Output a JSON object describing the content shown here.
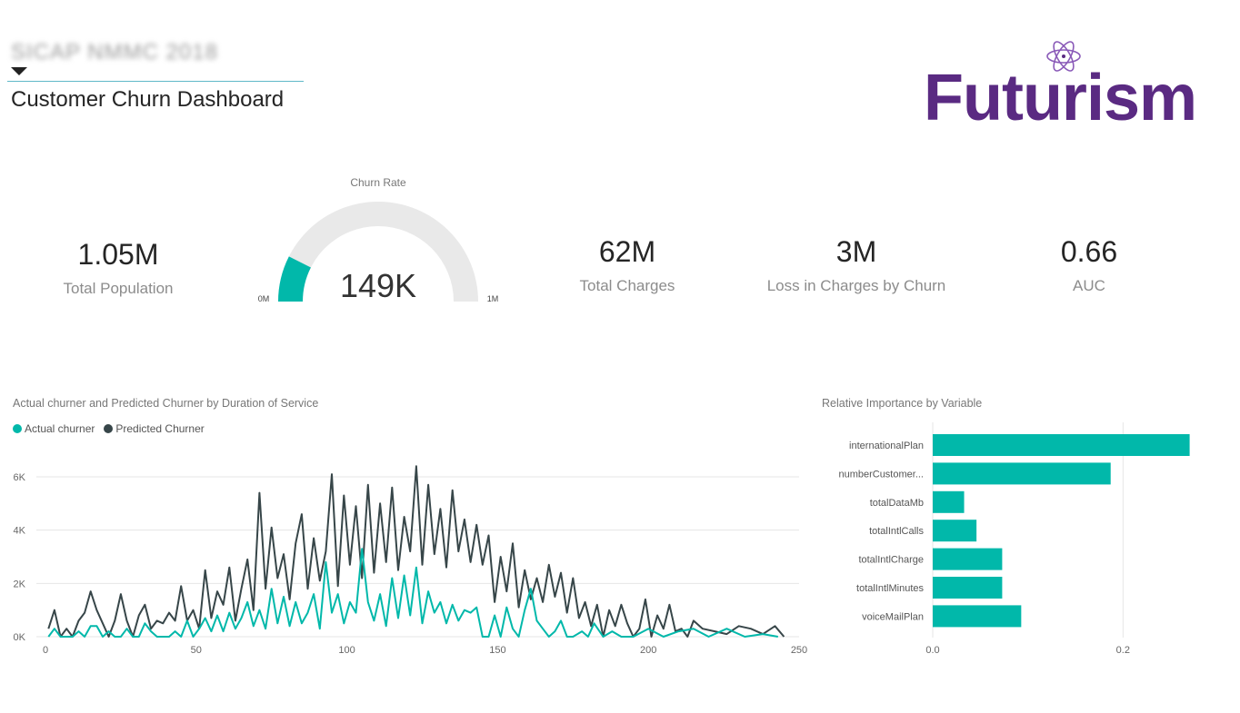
{
  "header": {
    "report_name": "SICAP NMMC 2018",
    "title": "Customer Churn Dashboard"
  },
  "logo": {
    "text": "Futurism",
    "icon": "atom-icon",
    "color": "#5a2a82"
  },
  "kpis": {
    "total_population": {
      "value": "1.05M",
      "label": "Total Population"
    },
    "total_charges": {
      "value": "62M",
      "label": "Total Charges"
    },
    "loss_in_charges": {
      "value": "3M",
      "label": "Loss in Charges by Churn"
    },
    "auc": {
      "value": "0.66",
      "label": "AUC"
    }
  },
  "gauge": {
    "title": "Churn Rate",
    "value_label": "149K",
    "min_label": "0M",
    "max_label": "1M",
    "fraction": 0.149,
    "fill_color": "#01b8aa",
    "track_color": "#e9e9e9"
  },
  "colors": {
    "teal": "#01b8aa",
    "dark": "#374649"
  },
  "chart_data": [
    {
      "type": "line",
      "title": "Actual churner and Predicted Churner by Duration of Service",
      "xlim": [
        0,
        250
      ],
      "ylim": [
        0,
        6000
      ],
      "x_ticks": [
        "0",
        "50",
        "100",
        "150",
        "200",
        "250"
      ],
      "y_ticks": [
        "0K",
        "2K",
        "4K",
        "6K"
      ],
      "legend": "top-left",
      "grid": true,
      "series": [
        {
          "name": "Actual churner",
          "color": "#01b8aa",
          "points": [
            [
              1,
              0
            ],
            [
              3,
              300
            ],
            [
              5,
              0
            ],
            [
              7,
              0
            ],
            [
              9,
              0
            ],
            [
              11,
              200
            ],
            [
              13,
              0
            ],
            [
              15,
              400
            ],
            [
              17,
              400
            ],
            [
              19,
              0
            ],
            [
              21,
              200
            ],
            [
              23,
              0
            ],
            [
              25,
              0
            ],
            [
              27,
              300
            ],
            [
              29,
              0
            ],
            [
              31,
              0
            ],
            [
              33,
              500
            ],
            [
              35,
              200
            ],
            [
              37,
              0
            ],
            [
              39,
              0
            ],
            [
              41,
              0
            ],
            [
              43,
              200
            ],
            [
              45,
              0
            ],
            [
              47,
              600
            ],
            [
              49,
              0
            ],
            [
              51,
              300
            ],
            [
              53,
              700
            ],
            [
              55,
              200
            ],
            [
              57,
              800
            ],
            [
              59,
              200
            ],
            [
              61,
              900
            ],
            [
              63,
              300
            ],
            [
              65,
              700
            ],
            [
              67,
              1300
            ],
            [
              69,
              400
            ],
            [
              71,
              1000
            ],
            [
              73,
              300
            ],
            [
              75,
              1800
            ],
            [
              77,
              500
            ],
            [
              79,
              1500
            ],
            [
              81,
              400
            ],
            [
              83,
              1300
            ],
            [
              85,
              500
            ],
            [
              87,
              900
            ],
            [
              89,
              1600
            ],
            [
              91,
              300
            ],
            [
              93,
              2800
            ],
            [
              95,
              900
            ],
            [
              97,
              1600
            ],
            [
              99,
              500
            ],
            [
              101,
              1300
            ],
            [
              103,
              900
            ],
            [
              105,
              3300
            ],
            [
              107,
              1300
            ],
            [
              109,
              600
            ],
            [
              111,
              1600
            ],
            [
              113,
              400
            ],
            [
              115,
              2200
            ],
            [
              117,
              700
            ],
            [
              119,
              2300
            ],
            [
              121,
              800
            ],
            [
              123,
              2600
            ],
            [
              125,
              500
            ],
            [
              127,
              1700
            ],
            [
              129,
              900
            ],
            [
              131,
              1300
            ],
            [
              133,
              500
            ],
            [
              135,
              1200
            ],
            [
              137,
              600
            ],
            [
              139,
              1000
            ],
            [
              141,
              900
            ],
            [
              143,
              1100
            ],
            [
              145,
              0
            ],
            [
              147,
              0
            ],
            [
              149,
              800
            ],
            [
              151,
              0
            ],
            [
              153,
              1100
            ],
            [
              155,
              300
            ],
            [
              157,
              0
            ],
            [
              159,
              1000
            ],
            [
              161,
              1800
            ],
            [
              163,
              600
            ],
            [
              165,
              300
            ],
            [
              167,
              0
            ],
            [
              169,
              200
            ],
            [
              171,
              600
            ],
            [
              173,
              0
            ],
            [
              175,
              0
            ],
            [
              178,
              200
            ],
            [
              180,
              0
            ],
            [
              182,
              500
            ],
            [
              185,
              0
            ],
            [
              188,
              200
            ],
            [
              191,
              0
            ],
            [
              195,
              0
            ],
            [
              200,
              300
            ],
            [
              205,
              0
            ],
            [
              210,
              200
            ],
            [
              215,
              300
            ],
            [
              220,
              0
            ],
            [
              226,
              300
            ],
            [
              232,
              0
            ],
            [
              238,
              100
            ],
            [
              243,
              0
            ]
          ]
        },
        {
          "name": "Predicted Churner",
          "color": "#374649",
          "points": [
            [
              1,
              300
            ],
            [
              3,
              1000
            ],
            [
              5,
              0
            ],
            [
              7,
              300
            ],
            [
              9,
              0
            ],
            [
              11,
              600
            ],
            [
              13,
              900
            ],
            [
              15,
              1700
            ],
            [
              17,
              1000
            ],
            [
              19,
              500
            ],
            [
              21,
              0
            ],
            [
              23,
              600
            ],
            [
              25,
              1600
            ],
            [
              27,
              600
            ],
            [
              29,
              0
            ],
            [
              31,
              800
            ],
            [
              33,
              1200
            ],
            [
              35,
              300
            ],
            [
              37,
              600
            ],
            [
              39,
              500
            ],
            [
              41,
              900
            ],
            [
              43,
              600
            ],
            [
              45,
              1900
            ],
            [
              47,
              600
            ],
            [
              49,
              1000
            ],
            [
              51,
              300
            ],
            [
              53,
              2500
            ],
            [
              55,
              700
            ],
            [
              57,
              1700
            ],
            [
              59,
              1200
            ],
            [
              61,
              2600
            ],
            [
              63,
              600
            ],
            [
              65,
              1800
            ],
            [
              67,
              2900
            ],
            [
              69,
              1000
            ],
            [
              71,
              5400
            ],
            [
              73,
              1800
            ],
            [
              75,
              4100
            ],
            [
              77,
              2200
            ],
            [
              79,
              3100
            ],
            [
              81,
              1400
            ],
            [
              83,
              3500
            ],
            [
              85,
              4600
            ],
            [
              87,
              1800
            ],
            [
              89,
              3700
            ],
            [
              91,
              2100
            ],
            [
              93,
              3200
            ],
            [
              95,
              6100
            ],
            [
              97,
              1900
            ],
            [
              99,
              5300
            ],
            [
              101,
              2700
            ],
            [
              103,
              4900
            ],
            [
              105,
              2200
            ],
            [
              107,
              5700
            ],
            [
              109,
              2400
            ],
            [
              111,
              5000
            ],
            [
              113,
              2800
            ],
            [
              115,
              5600
            ],
            [
              117,
              2500
            ],
            [
              119,
              4500
            ],
            [
              121,
              3200
            ],
            [
              123,
              6400
            ],
            [
              125,
              2700
            ],
            [
              127,
              5700
            ],
            [
              129,
              3100
            ],
            [
              131,
              4800
            ],
            [
              133,
              2600
            ],
            [
              135,
              5500
            ],
            [
              137,
              3200
            ],
            [
              139,
              4400
            ],
            [
              141,
              2800
            ],
            [
              143,
              4200
            ],
            [
              145,
              2700
            ],
            [
              147,
              3800
            ],
            [
              149,
              1300
            ],
            [
              151,
              3000
            ],
            [
              153,
              1700
            ],
            [
              155,
              3500
            ],
            [
              157,
              1100
            ],
            [
              159,
              2500
            ],
            [
              161,
              1400
            ],
            [
              163,
              2200
            ],
            [
              165,
              1300
            ],
            [
              167,
              2700
            ],
            [
              169,
              1500
            ],
            [
              171,
              2400
            ],
            [
              173,
              900
            ],
            [
              175,
              2200
            ],
            [
              177,
              700
            ],
            [
              179,
              1300
            ],
            [
              181,
              400
            ],
            [
              183,
              1200
            ],
            [
              185,
              0
            ],
            [
              187,
              1000
            ],
            [
              189,
              400
            ],
            [
              191,
              1200
            ],
            [
              193,
              500
            ],
            [
              195,
              0
            ],
            [
              197,
              300
            ],
            [
              199,
              1400
            ],
            [
              201,
              0
            ],
            [
              203,
              800
            ],
            [
              205,
              300
            ],
            [
              207,
              1200
            ],
            [
              209,
              200
            ],
            [
              211,
              300
            ],
            [
              213,
              0
            ],
            [
              215,
              600
            ],
            [
              218,
              300
            ],
            [
              222,
              200
            ],
            [
              226,
              100
            ],
            [
              230,
              400
            ],
            [
              234,
              300
            ],
            [
              238,
              100
            ],
            [
              242,
              400
            ],
            [
              245,
              0
            ]
          ]
        }
      ]
    },
    {
      "type": "bar",
      "title": "Relative Importance by Variable",
      "orientation": "horizontal",
      "categories": [
        "internationalPlan",
        "numberCustomer...",
        "totalDataMb",
        "totalIntlCalls",
        "totalIntlCharge",
        "totalIntlMinutes",
        "voiceMailPlan"
      ],
      "values": [
        0.27,
        0.187,
        0.033,
        0.046,
        0.073,
        0.073,
        0.093
      ],
      "xlim": [
        0,
        0.3
      ],
      "x_ticks": [
        "0.0",
        "0.2"
      ],
      "color": "#01b8aa"
    }
  ]
}
